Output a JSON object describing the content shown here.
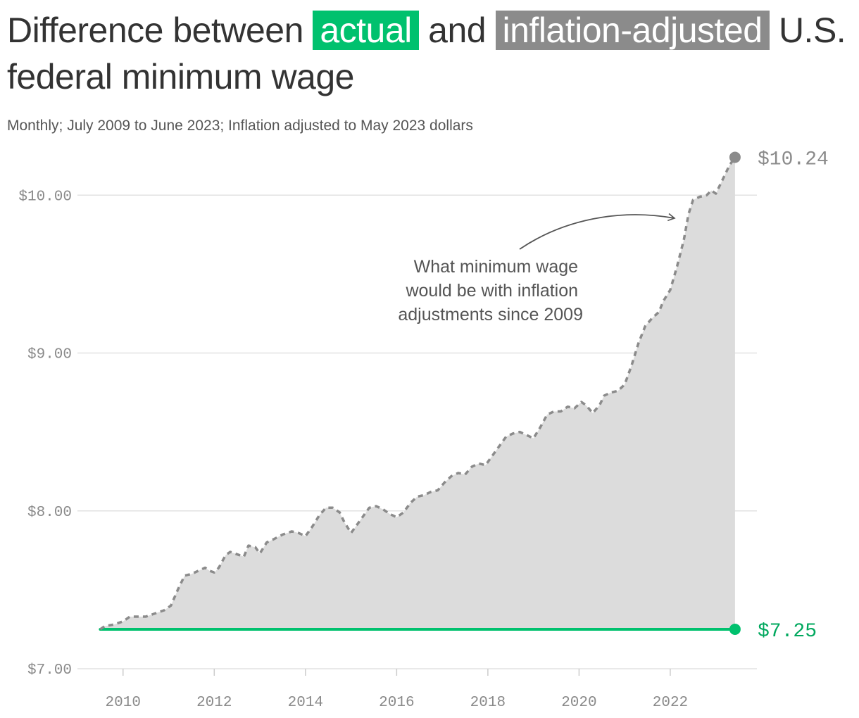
{
  "title": {
    "part1": "Difference between",
    "actual": "actual",
    "and": "and",
    "inflation_adjusted": "inflation-adjusted",
    "part2": "U.S. federal minimum wage"
  },
  "subtitle": "Monthly; July 2009 to June 2023; Inflation adjusted to May 2023 dollars",
  "colors": {
    "actual": "#00c16e",
    "actual_label": "#00a85e",
    "adjusted": "#8b8b8b",
    "area": "#dcdcdc",
    "grid": "#e2e2e2"
  },
  "chart_data": {
    "type": "area",
    "xlim": [
      2009.0,
      2023.9
    ],
    "ylim": [
      7.0,
      10.3
    ],
    "y_ticks": [
      {
        "value": 7.0,
        "label": "$7.00"
      },
      {
        "value": 8.0,
        "label": "$8.00"
      },
      {
        "value": 9.0,
        "label": "$9.00"
      },
      {
        "value": 10.0,
        "label": "$10.00"
      }
    ],
    "x_ticks": [
      {
        "value": 2010,
        "label": "2010"
      },
      {
        "value": 2012,
        "label": "2012"
      },
      {
        "value": 2014,
        "label": "2014"
      },
      {
        "value": 2016,
        "label": "2016"
      },
      {
        "value": 2018,
        "label": "2018"
      },
      {
        "value": 2020,
        "label": "2020"
      },
      {
        "value": 2022,
        "label": "2022"
      }
    ],
    "grid": true,
    "series": [
      {
        "key": "actual",
        "style": "solid",
        "end_label": "$7.25",
        "points": [
          [
            2009.5,
            7.25
          ],
          [
            2023.42,
            7.25
          ]
        ]
      },
      {
        "key": "adjusted",
        "style": "dashed",
        "end_label": "$10.24",
        "points": [
          [
            2009.5,
            7.25
          ],
          [
            2009.6,
            7.27
          ],
          [
            2009.8,
            7.28
          ],
          [
            2010.0,
            7.3
          ],
          [
            2010.15,
            7.33
          ],
          [
            2010.3,
            7.33
          ],
          [
            2010.5,
            7.33
          ],
          [
            2010.7,
            7.35
          ],
          [
            2010.9,
            7.37
          ],
          [
            2011.05,
            7.4
          ],
          [
            2011.2,
            7.5
          ],
          [
            2011.35,
            7.59
          ],
          [
            2011.5,
            7.6
          ],
          [
            2011.65,
            7.62
          ],
          [
            2011.8,
            7.64
          ],
          [
            2011.9,
            7.62
          ],
          [
            2012.0,
            7.61
          ],
          [
            2012.1,
            7.64
          ],
          [
            2012.25,
            7.72
          ],
          [
            2012.35,
            7.74
          ],
          [
            2012.55,
            7.72
          ],
          [
            2012.65,
            7.71
          ],
          [
            2012.75,
            7.78
          ],
          [
            2012.9,
            7.77
          ],
          [
            2013.0,
            7.73
          ],
          [
            2013.15,
            7.8
          ],
          [
            2013.3,
            7.82
          ],
          [
            2013.5,
            7.85
          ],
          [
            2013.7,
            7.87
          ],
          [
            2013.85,
            7.86
          ],
          [
            2014.0,
            7.84
          ],
          [
            2014.15,
            7.9
          ],
          [
            2014.3,
            7.97
          ],
          [
            2014.45,
            8.02
          ],
          [
            2014.6,
            8.02
          ],
          [
            2014.75,
            7.99
          ],
          [
            2014.85,
            7.93
          ],
          [
            2015.0,
            7.86
          ],
          [
            2015.1,
            7.9
          ],
          [
            2015.25,
            7.96
          ],
          [
            2015.4,
            8.02
          ],
          [
            2015.55,
            8.03
          ],
          [
            2015.7,
            8.01
          ],
          [
            2015.85,
            7.98
          ],
          [
            2016.0,
            7.96
          ],
          [
            2016.15,
            7.99
          ],
          [
            2016.3,
            8.05
          ],
          [
            2016.45,
            8.09
          ],
          [
            2016.6,
            8.1
          ],
          [
            2016.75,
            8.12
          ],
          [
            2016.9,
            8.13
          ],
          [
            2017.05,
            8.18
          ],
          [
            2017.2,
            8.22
          ],
          [
            2017.35,
            8.24
          ],
          [
            2017.5,
            8.23
          ],
          [
            2017.65,
            8.28
          ],
          [
            2017.8,
            8.3
          ],
          [
            2017.95,
            8.29
          ],
          [
            2018.1,
            8.35
          ],
          [
            2018.25,
            8.41
          ],
          [
            2018.4,
            8.47
          ],
          [
            2018.55,
            8.49
          ],
          [
            2018.7,
            8.5
          ],
          [
            2018.85,
            8.48
          ],
          [
            2019.0,
            8.46
          ],
          [
            2019.15,
            8.53
          ],
          [
            2019.3,
            8.61
          ],
          [
            2019.45,
            8.63
          ],
          [
            2019.6,
            8.63
          ],
          [
            2019.75,
            8.66
          ],
          [
            2019.9,
            8.65
          ],
          [
            2020.05,
            8.69
          ],
          [
            2020.15,
            8.67
          ],
          [
            2020.3,
            8.62
          ],
          [
            2020.45,
            8.67
          ],
          [
            2020.55,
            8.73
          ],
          [
            2020.7,
            8.75
          ],
          [
            2020.85,
            8.76
          ],
          [
            2021.0,
            8.8
          ],
          [
            2021.15,
            8.92
          ],
          [
            2021.3,
            9.06
          ],
          [
            2021.45,
            9.17
          ],
          [
            2021.6,
            9.22
          ],
          [
            2021.75,
            9.26
          ],
          [
            2021.85,
            9.33
          ],
          [
            2022.0,
            9.4
          ],
          [
            2022.15,
            9.55
          ],
          [
            2022.3,
            9.72
          ],
          [
            2022.4,
            9.88
          ],
          [
            2022.5,
            9.97
          ],
          [
            2022.65,
            9.99
          ],
          [
            2022.8,
            10.0
          ],
          [
            2022.9,
            10.03
          ],
          [
            2023.0,
            10.01
          ],
          [
            2023.15,
            10.1
          ],
          [
            2023.3,
            10.19
          ],
          [
            2023.42,
            10.24
          ]
        ]
      }
    ],
    "annotation": {
      "lines": [
        "What minimum wage",
        "would be with inflation",
        "adjustments since 2009"
      ]
    }
  }
}
